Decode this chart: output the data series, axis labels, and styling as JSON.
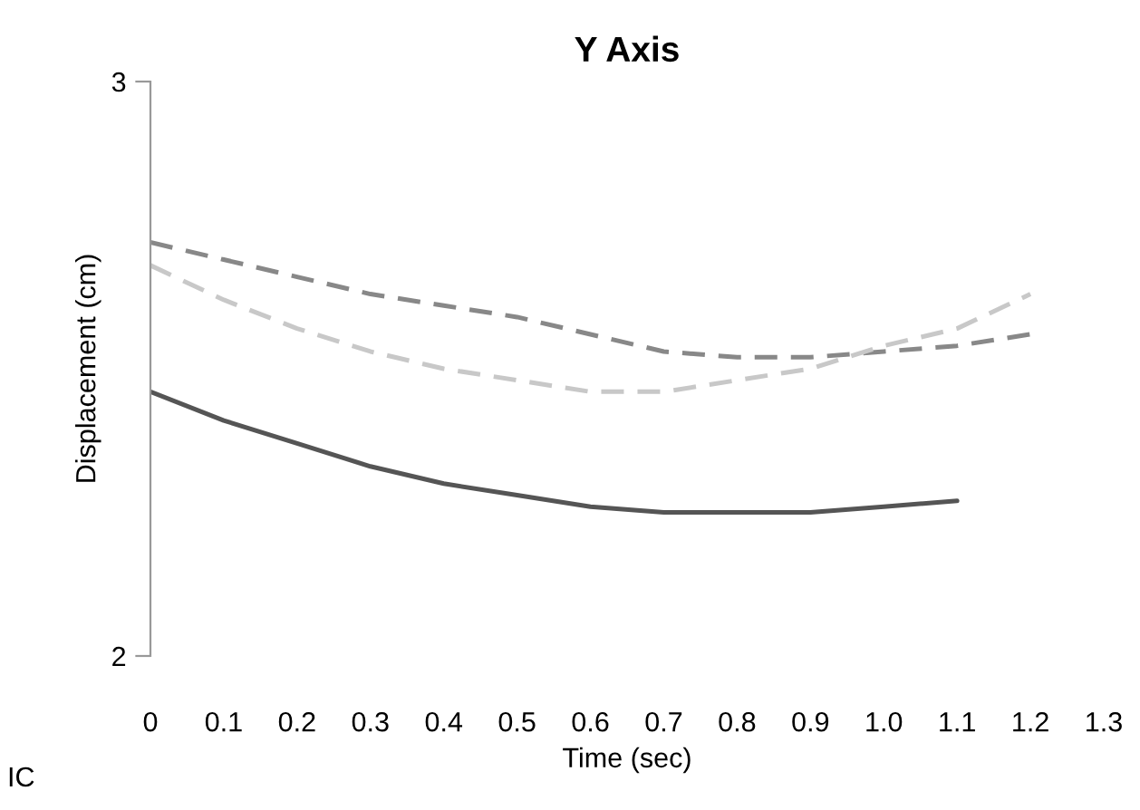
{
  "chart_data": {
    "type": "line",
    "title": "Y Axis",
    "xlabel": "Time (sec)",
    "ylabel": "Displacement (cm)",
    "x": [
      0,
      0.1,
      0.2,
      0.3,
      0.4,
      0.5,
      0.6,
      0.7,
      0.8,
      0.9,
      1.0,
      1.1,
      1.2
    ],
    "series": [
      {
        "color": "#555555",
        "line_style": "solid",
        "values": [
          2.46,
          2.41,
          2.37,
          2.33,
          2.3,
          2.28,
          2.26,
          2.25,
          2.25,
          2.25,
          2.26,
          2.27,
          null
        ]
      },
      {
        "color": "#888888",
        "line_style": "dashed",
        "values": [
          2.72,
          2.69,
          2.66,
          2.63,
          2.61,
          2.59,
          2.56,
          2.53,
          2.52,
          2.52,
          2.53,
          2.54,
          2.56
        ]
      },
      {
        "color": "#c8c8c8",
        "line_style": "dashed",
        "values": [
          2.68,
          2.62,
          2.57,
          2.53,
          2.5,
          2.48,
          2.46,
          2.46,
          2.48,
          2.5,
          2.54,
          2.57,
          2.63
        ]
      }
    ],
    "xlim": [
      0,
      1.3
    ],
    "xticks": [
      0,
      {
        "value": 0.1,
        "label": "0.1"
      },
      {
        "value": 0.2,
        "label": "0.2"
      },
      {
        "value": 0.3,
        "label": "0.3"
      },
      {
        "value": 0.4,
        "label": "0.4"
      },
      {
        "value": 0.5,
        "label": "0.5"
      },
      {
        "value": 0.6,
        "label": "0.6"
      },
      {
        "value": 0.7,
        "label": "0.7"
      },
      {
        "value": 0.8,
        "label": "0.8"
      },
      {
        "value": 0.9,
        "label": "0.9"
      },
      {
        "value": 1.0,
        "label": "1.0"
      },
      {
        "value": 1.1,
        "label": "1.1"
      },
      {
        "value": 1.2,
        "label": "1.2"
      },
      {
        "value": 1.3,
        "label": "1.3"
      }
    ],
    "ylim": [
      2,
      3
    ],
    "yticks": [
      2,
      3
    ],
    "grid": false,
    "legend": false,
    "annotations": [
      "IC"
    ]
  }
}
